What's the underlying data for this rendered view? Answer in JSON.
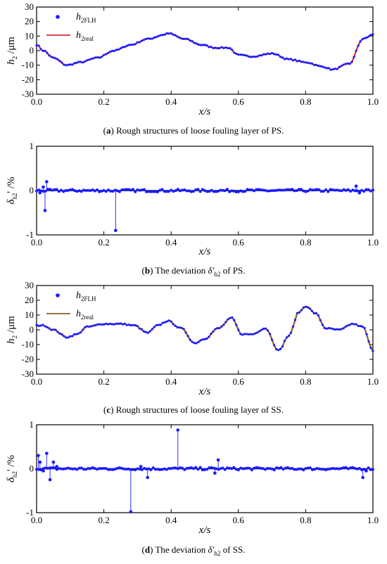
{
  "chart_data": [
    {
      "id": "a",
      "type": "line",
      "caption": {
        "letter": "a",
        "text": " Rough structures of loose fouling layer of PS."
      },
      "ylabel": {
        "main": "h",
        "sub": "2",
        "unit": " /μm"
      },
      "xlabel": "x/s",
      "xlim": [
        0,
        1
      ],
      "ylim": [
        -30,
        30
      ],
      "xticks": [
        "0.0",
        "0.2",
        "0.4",
        "0.6",
        "0.8",
        "1.0"
      ],
      "yticks": [
        "30",
        "20",
        "10",
        "0",
        "-10",
        "-20",
        "-30"
      ],
      "legend": [
        {
          "main": "h",
          "sub": "2",
          "sub2": "FLH",
          "marker": "dot"
        },
        {
          "main": "h",
          "sub": "2",
          "sub2": "real",
          "marker": "line"
        }
      ],
      "x": [
        0,
        0.02,
        0.05,
        0.09,
        0.13,
        0.18,
        0.23,
        0.28,
        0.33,
        0.38,
        0.39,
        0.44,
        0.49,
        0.53,
        0.55,
        0.57,
        0.6,
        0.64,
        0.7,
        0.75,
        0.8,
        0.85,
        0.88,
        0.93,
        0.97,
        1.0
      ],
      "y": [
        4,
        0,
        -5,
        -10,
        -8,
        -5,
        0,
        4,
        8,
        11,
        12,
        8,
        4,
        2,
        2,
        2,
        -3,
        -4,
        -2,
        -6,
        -8,
        -11,
        -13,
        -9,
        8,
        11
      ],
      "colors": {
        "dots": "#1a1aff",
        "line": "#d62840"
      }
    },
    {
      "id": "b",
      "type": "scatter",
      "caption": {
        "letter": "b",
        "text": " The deviation ",
        "sym": "δ′",
        "symsub": "h2",
        "end": " of PS."
      },
      "ylabel": {
        "main": "δ",
        "sub": "h2",
        "unit": "' /%"
      },
      "xlabel": "x/s",
      "xlim": [
        0,
        1
      ],
      "ylim": [
        -1,
        1
      ],
      "xticks": [
        "0.0",
        "0.2",
        "0.4",
        "0.6",
        "0.8",
        "1.0"
      ],
      "yticks": [
        "1",
        "0",
        "-1"
      ],
      "spikes_x": [
        0.01,
        0.02,
        0.025,
        0.03,
        0.235,
        0.95,
        0.96
      ],
      "spikes_y": [
        -0.05,
        0.08,
        -0.45,
        0.2,
        -0.9,
        0.1,
        -0.05
      ],
      "colors": {
        "dots": "#1a1aff"
      }
    },
    {
      "id": "c",
      "type": "line",
      "caption": {
        "letter": "c",
        "text": " Rough structures of loose fouling layer of SS."
      },
      "ylabel": {
        "main": "h",
        "sub": "2",
        "unit": " /μm"
      },
      "xlabel": "x/s",
      "xlim": [
        0,
        1
      ],
      "ylim": [
        -30,
        30
      ],
      "xticks": [
        "0.0",
        "0.2",
        "0.4",
        "0.6",
        "0.8",
        "1.0"
      ],
      "yticks": [
        "30",
        "20",
        "10",
        "0",
        "-10",
        "-20",
        "-30"
      ],
      "legend": [
        {
          "main": "h",
          "sub": "2",
          "sub2": "FLH",
          "marker": "dot"
        },
        {
          "main": "h",
          "sub": "2",
          "sub2": "real",
          "marker": "line"
        }
      ],
      "x": [
        0,
        0.02,
        0.05,
        0.09,
        0.12,
        0.15,
        0.2,
        0.25,
        0.29,
        0.33,
        0.36,
        0.39,
        0.43,
        0.47,
        0.5,
        0.54,
        0.58,
        0.61,
        0.64,
        0.68,
        0.72,
        0.75,
        0.78,
        0.8,
        0.83,
        0.86,
        0.9,
        0.94,
        0.97,
        1.0
      ],
      "y": [
        3,
        3,
        0,
        -5,
        -3,
        2,
        4,
        4,
        3,
        -2,
        3,
        6,
        1,
        -9,
        -6,
        1,
        8,
        -3,
        -3,
        1,
        -14,
        -4,
        12,
        16,
        11,
        1,
        0,
        4,
        2,
        -14
      ],
      "colors": {
        "dots": "#1a1aff",
        "line": "#8b5a2b"
      }
    },
    {
      "id": "d",
      "type": "scatter",
      "caption": {
        "letter": "d",
        "text": " The deviation ",
        "sym": "δ′",
        "symsub": "h2",
        "end": " of SS."
      },
      "ylabel": {
        "main": "δ",
        "sub": "h2",
        "unit": "' /%"
      },
      "xlabel": "x/s",
      "xlim": [
        0,
        1
      ],
      "ylim": [
        -1,
        1
      ],
      "xticks": [
        "0.0",
        "0.2",
        "0.4",
        "0.6",
        "0.8",
        "1.0"
      ],
      "yticks": [
        "1",
        "0",
        "-1"
      ],
      "spikes_x": [
        0.005,
        0.01,
        0.02,
        0.03,
        0.04,
        0.05,
        0.06,
        0.28,
        0.31,
        0.33,
        0.42,
        0.53,
        0.54,
        0.97,
        0.98
      ],
      "spikes_y": [
        0.3,
        0.15,
        -0.05,
        0.35,
        -0.25,
        0.15,
        0.05,
        -0.98,
        0.05,
        -0.2,
        0.88,
        -0.1,
        0.2,
        -0.2,
        -0.05
      ],
      "colors": {
        "dots": "#1a1aff"
      }
    }
  ]
}
